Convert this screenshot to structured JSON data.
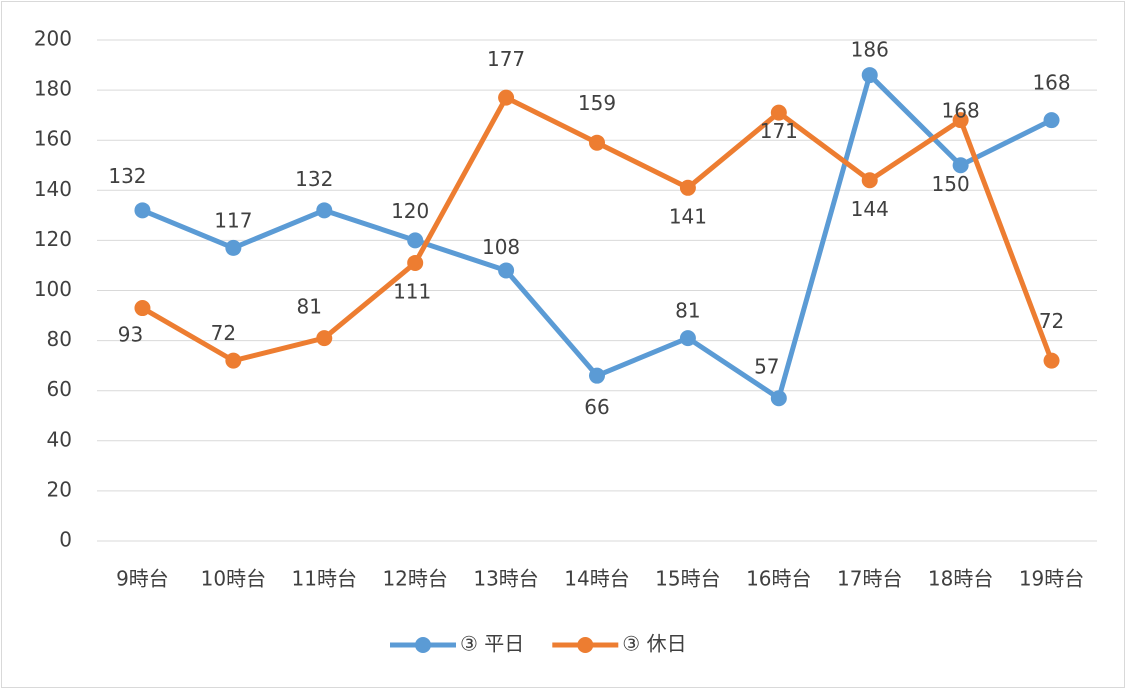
{
  "chart_data": {
    "type": "line",
    "categories": [
      "9時台",
      "10時台",
      "11時台",
      "12時台",
      "13時台",
      "14時台",
      "15時台",
      "16時台",
      "17時台",
      "18時台",
      "19時台"
    ],
    "series": [
      {
        "name": "③ 平日",
        "color": "#5b9bd5",
        "values": [
          132,
          117,
          132,
          120,
          108,
          66,
          81,
          57,
          186,
          150,
          168
        ]
      },
      {
        "name": "③ 休日",
        "color": "#ed7d31",
        "values": [
          93,
          72,
          81,
          111,
          177,
          159,
          141,
          171,
          144,
          168,
          72
        ]
      }
    ],
    "ylim": [
      0,
      200
    ],
    "yticks": [
      0,
      20,
      40,
      60,
      80,
      100,
      120,
      140,
      160,
      180,
      200
    ],
    "grid": true,
    "legend": "bottom"
  }
}
